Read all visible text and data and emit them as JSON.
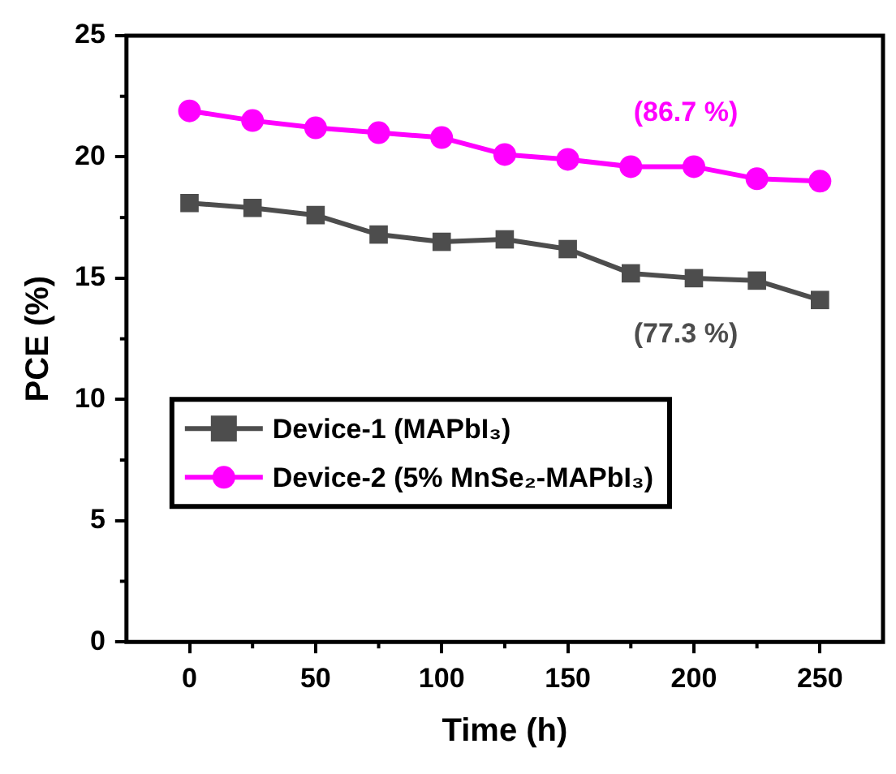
{
  "chart_data": {
    "type": "line",
    "xlabel": "Time (h)",
    "ylabel": "PCE (%)",
    "x": [
      0,
      25,
      50,
      75,
      100,
      125,
      150,
      175,
      200,
      225,
      250
    ],
    "series": [
      {
        "name": "Device-1 (MAPbI₃)",
        "color": "#4d4d4d",
        "marker": "square",
        "values": [
          18.1,
          17.9,
          17.6,
          16.8,
          16.5,
          16.6,
          16.2,
          15.2,
          15.0,
          14.9,
          14.1
        ]
      },
      {
        "name": "Device-2 (5% MnSe₂-MAPbI₃)",
        "color": "#ff00ff",
        "marker": "circle",
        "values": [
          21.9,
          21.5,
          21.2,
          21.0,
          20.8,
          20.1,
          19.9,
          19.6,
          19.6,
          19.1,
          19.0
        ]
      }
    ],
    "annotations": [
      "(77.3 %)",
      "(86.7 %)"
    ],
    "xlim": [
      -25,
      275
    ],
    "xticks": [
      0,
      50,
      100,
      150,
      200,
      250
    ],
    "ylim": [
      0,
      25
    ],
    "yticks": [
      0,
      5,
      10,
      15,
      20,
      25
    ],
    "grid": false,
    "legend": "left",
    "line_style": "solid"
  }
}
